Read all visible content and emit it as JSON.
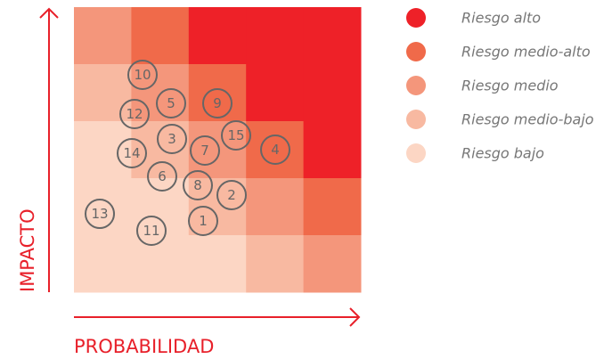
{
  "axes": {
    "y_label": "IMPACTO",
    "x_label": "PROBABILIDAD"
  },
  "legend": [
    {
      "label": "Riesgo alto",
      "color": "#ee2128"
    },
    {
      "label": "Riesgo medio-alto",
      "color": "#f06a4a"
    },
    {
      "label": "Riesgo medio",
      "color": "#f4967b"
    },
    {
      "label": "Riesgo medio-bajo",
      "color": "#f8b9a1"
    },
    {
      "label": "Riesgo bajo",
      "color": "#fcd6c4"
    }
  ],
  "risks": [
    "10",
    "5",
    "9",
    "12",
    "3",
    "15",
    "4",
    "7",
    "14",
    "6",
    "8",
    "2",
    "13",
    "1",
    "11"
  ]
}
